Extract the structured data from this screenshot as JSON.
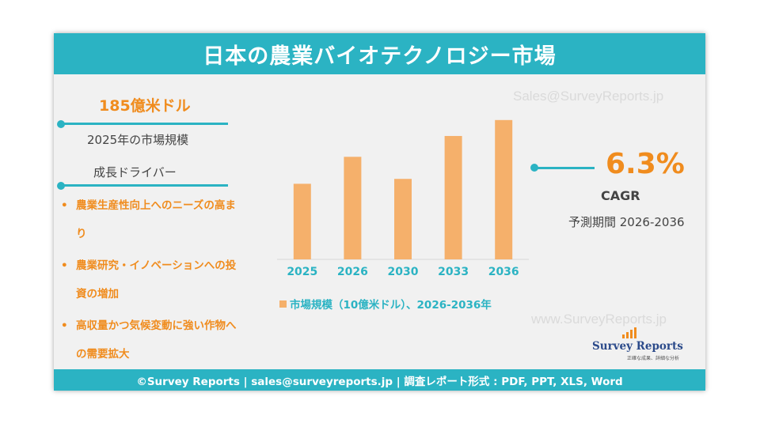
{
  "header": {
    "title": "日本の農業バイオテクノロジー市場"
  },
  "market": {
    "size": "185億米ドル",
    "caption": "2025年の市場規模"
  },
  "drivers": {
    "title": "成長ドライバー",
    "bullet": "•",
    "items": [
      {
        "line1": "農業生産性向上へのニーズの高ま",
        "line2": "り"
      },
      {
        "line1": "農業研究・イノベーションへの投",
        "line2": "資の増加"
      },
      {
        "line1": "高収量かつ気候変動に強い作物へ",
        "line2": "の需要拡大"
      }
    ]
  },
  "cagr": {
    "value": "6.3%",
    "label": "CAGR",
    "period": "予測期間 2026-2036"
  },
  "watermarks": {
    "top": "Sales@SurveyReports.jp",
    "bottom": "www.SurveyReports.jp"
  },
  "logo": {
    "name": "Survey Reports",
    "tagline": "正確な成果、詳細な分析"
  },
  "footer": {
    "text": "©Survey Reports | sales@surveyreports.jp |  調査レポート形式 : PDF, PPT, XLS, Word"
  },
  "colors": {
    "accent": "#2bb3c3",
    "highlight": "#f08c1e",
    "bar": "#f5b06b"
  },
  "chart_data": {
    "type": "bar",
    "categories": [
      "2025",
      "2030",
      "2026",
      "2033",
      "2036"
    ],
    "display_order": [
      "2025",
      "2026",
      "2030",
      "2033",
      "2036"
    ],
    "values": [
      18.5,
      19.7,
      25.1,
      30.2,
      34.1
    ],
    "series": [
      {
        "name": "市場規模（10億米ドル）、2026-2036年"
      }
    ],
    "legend": "市場規模（10億米ドル）、2026-2036年",
    "ylim": [
      0,
      36
    ],
    "grid": false,
    "legend_position": "bottom"
  }
}
